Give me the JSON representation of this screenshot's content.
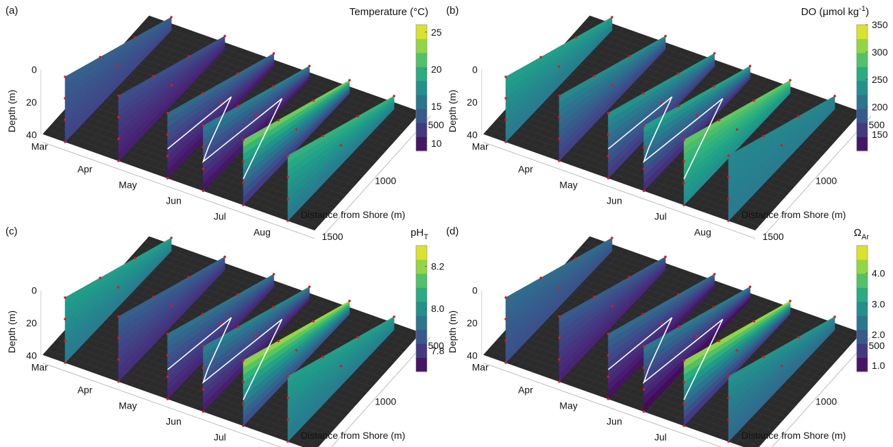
{
  "figure": {
    "depth_axis_label": "Depth (m)",
    "distance_axis_label": "Distance from Shore (m)",
    "month_ticks": [
      "Mar",
      "Apr",
      "May",
      "Jun",
      "Jul",
      "Aug"
    ],
    "depth_ticks": [
      "0",
      "20",
      "40"
    ],
    "distance_ticks": [
      "500",
      "1000",
      "1500"
    ],
    "colormap": "viridis",
    "seafloor_color": "#2b2b2b",
    "sample_point_color": "#e8141b",
    "thermocline_line_color": "#ffffff"
  },
  "chart_data": [
    {
      "panel": "(a)",
      "type": "heatmap",
      "colorbar_title_main": "Temperature (°C)",
      "colorbar_title_sub": "",
      "colorbar_title_tail": "",
      "colorbar_ticks": [
        "10",
        "15",
        "20",
        "25"
      ],
      "colorbar_tick_values": [
        10,
        15,
        20,
        25
      ],
      "colorbar_range": [
        9,
        26
      ],
      "transects": [
        {
          "month": "Mar",
          "surface": 14.5,
          "bottom": 12.5
        },
        {
          "month": "Apr",
          "surface": 13.5,
          "bottom": 10.5
        },
        {
          "month": "May",
          "surface": 15.5,
          "bottom": 10.0
        },
        {
          "month": "Jun",
          "surface": 17.0,
          "bottom": 10.0
        },
        {
          "month": "Jul",
          "surface": 23.5,
          "bottom": 12.0
        },
        {
          "month": "Aug",
          "surface": 20.5,
          "bottom": 16.0
        }
      ]
    },
    {
      "panel": "(b)",
      "type": "heatmap",
      "colorbar_title_main": "DO (μmol kg",
      "colorbar_title_sub": "",
      "colorbar_title_tail": "-1",
      "colorbar_title_close": ")",
      "colorbar_ticks": [
        "150",
        "200",
        "250",
        "300",
        "350"
      ],
      "colorbar_tick_values": [
        150,
        200,
        250,
        300,
        350
      ],
      "colorbar_range": [
        120,
        350
      ],
      "transects": [
        {
          "month": "Mar",
          "surface": 255,
          "bottom": 215
        },
        {
          "month": "Apr",
          "surface": 240,
          "bottom": 165
        },
        {
          "month": "May",
          "surface": 250,
          "bottom": 160
        },
        {
          "month": "Jun",
          "surface": 265,
          "bottom": 150
        },
        {
          "month": "Jul",
          "surface": 300,
          "bottom": 235
        },
        {
          "month": "Aug",
          "surface": 230,
          "bottom": 215
        }
      ]
    },
    {
      "panel": "(c)",
      "type": "heatmap",
      "colorbar_title_main": "pH",
      "colorbar_title_sub": "T",
      "colorbar_title_tail": "",
      "colorbar_ticks": [
        "7.8",
        "8.0",
        "8.2"
      ],
      "colorbar_tick_values": [
        7.8,
        8.0,
        8.2
      ],
      "colorbar_range": [
        7.7,
        8.3
      ],
      "transects": [
        {
          "month": "Mar",
          "surface": 8.05,
          "bottom": 7.95
        },
        {
          "month": "Apr",
          "surface": 7.9,
          "bottom": 7.78
        },
        {
          "month": "May",
          "surface": 7.95,
          "bottom": 7.76
        },
        {
          "month": "Jun",
          "surface": 8.0,
          "bottom": 7.75
        },
        {
          "month": "Jul",
          "surface": 8.25,
          "bottom": 7.85
        },
        {
          "month": "Aug",
          "surface": 8.05,
          "bottom": 7.95
        }
      ]
    },
    {
      "panel": "(d)",
      "type": "heatmap",
      "colorbar_title_main": "Ω",
      "colorbar_title_sub": "Ar",
      "colorbar_title_tail": "",
      "colorbar_ticks": [
        "1.0",
        "2.0",
        "3.0",
        "4.0"
      ],
      "colorbar_tick_values": [
        1.0,
        2.0,
        3.0,
        4.0
      ],
      "colorbar_range": [
        0.8,
        4.9
      ],
      "transects": [
        {
          "month": "Mar",
          "surface": 2.3,
          "bottom": 1.8
        },
        {
          "month": "Apr",
          "surface": 2.1,
          "bottom": 1.2
        },
        {
          "month": "May",
          "surface": 2.4,
          "bottom": 1.0
        },
        {
          "month": "Jun",
          "surface": 2.7,
          "bottom": 0.9
        },
        {
          "month": "Jul",
          "surface": 4.6,
          "bottom": 1.5
        },
        {
          "month": "Aug",
          "surface": 3.0,
          "bottom": 2.2
        }
      ]
    }
  ]
}
